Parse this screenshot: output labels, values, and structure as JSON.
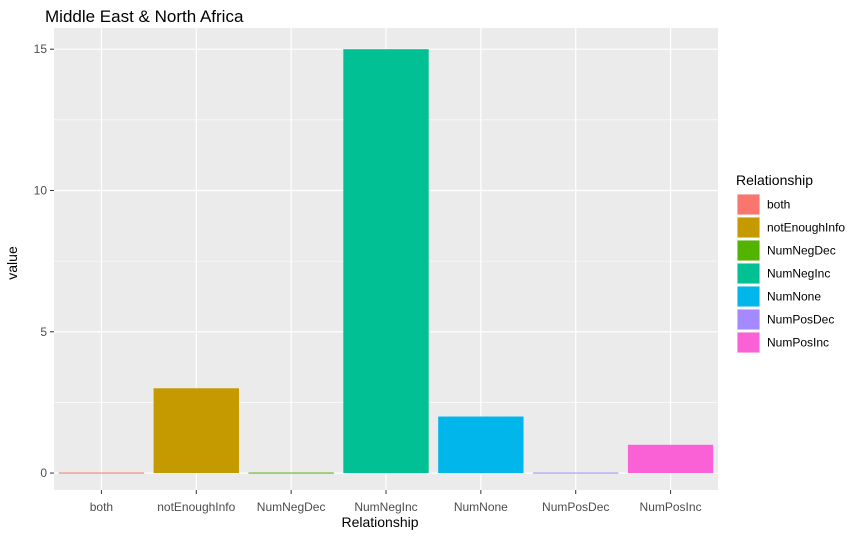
{
  "chart_data": {
    "type": "bar",
    "title": "Middle East & North Africa",
    "xlabel": "Relationship",
    "ylabel": "value",
    "categories": [
      "both",
      "notEnoughInfo",
      "NumNegDec",
      "NumNegInc",
      "NumNone",
      "NumPosDec",
      "NumPosInc"
    ],
    "values": [
      0,
      3,
      0,
      15,
      2,
      0,
      1
    ],
    "colors": [
      "#F8766D",
      "#C49A00",
      "#53B400",
      "#00C094",
      "#00B6EB",
      "#A58AFF",
      "#FB61D7"
    ],
    "ylim": [
      -0.6,
      15.75
    ],
    "yticks": [
      0,
      5,
      10,
      15
    ],
    "grid": true,
    "panel_background": "#EBEBEB",
    "grid_color": "#FFFFFF",
    "legend": {
      "title": "Relationship",
      "position": "right",
      "entries": [
        "both",
        "notEnoughInfo",
        "NumNegDec",
        "NumNegInc",
        "NumNone",
        "NumPosDec",
        "NumPosInc"
      ]
    }
  }
}
